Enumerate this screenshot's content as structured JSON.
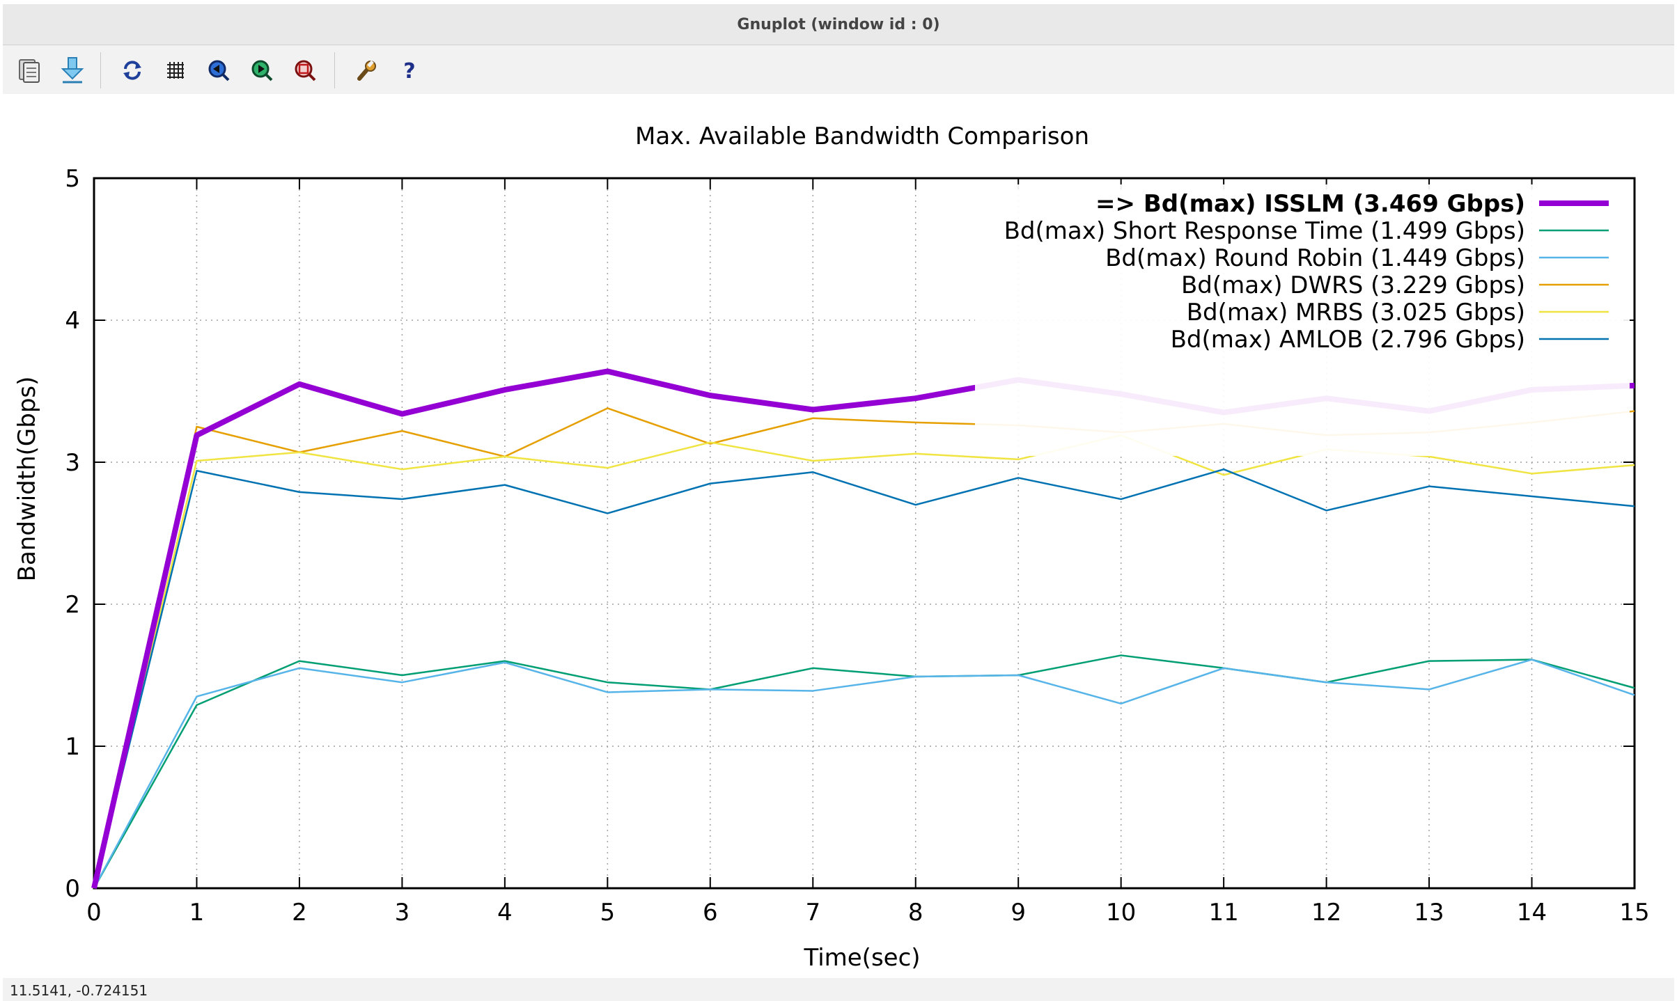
{
  "window": {
    "title": "Gnuplot (window id : 0)"
  },
  "toolbar": {
    "buttons": [
      {
        "name": "copy-to-clipboard",
        "icon": "clipboard-icon"
      },
      {
        "name": "export",
        "icon": "download-arrow-icon"
      },
      {
        "name": "replot",
        "icon": "refresh-icon"
      },
      {
        "name": "toggle-grid",
        "icon": "grid-icon"
      },
      {
        "name": "previous-zoom",
        "icon": "zoom-previous-icon"
      },
      {
        "name": "next-zoom",
        "icon": "zoom-next-icon"
      },
      {
        "name": "autoscale",
        "icon": "zoom-autoscale-icon"
      },
      {
        "name": "settings",
        "icon": "wrench-icon"
      },
      {
        "name": "help",
        "icon": "question-icon"
      }
    ]
  },
  "status": {
    "coords": "11.5141, -0.724151"
  },
  "chart_data": {
    "type": "line",
    "title": "Max. Available Bandwidth Comparison",
    "xlabel": "Time(sec)",
    "ylabel": "Bandwidth(Gbps)",
    "xlim": [
      0,
      15
    ],
    "ylim": [
      0,
      5
    ],
    "xticks": [
      "0",
      "1",
      "2",
      "3",
      "4",
      "5",
      "6",
      "7",
      "8",
      "9",
      "10",
      "11",
      "12",
      "13",
      "14",
      "15"
    ],
    "yticks": [
      "0",
      "1",
      "2",
      "3",
      "4",
      "5"
    ],
    "grid": true,
    "legend_position": "top-right",
    "x": [
      0,
      1,
      2,
      3,
      4,
      5,
      6,
      7,
      8,
      9,
      10,
      11,
      12,
      13,
      14,
      15
    ],
    "series": [
      {
        "name": "=> Bd(max) ISSLM (3.469 Gbps)",
        "color": "#9400d3",
        "bold": true,
        "values": [
          0,
          3.19,
          3.55,
          3.34,
          3.51,
          3.64,
          3.47,
          3.37,
          3.45,
          3.58,
          3.48,
          3.35,
          3.45,
          3.36,
          3.51,
          3.54
        ]
      },
      {
        "name": "Bd(max) Short Response Time (1.499 Gbps)",
        "color": "#009e73",
        "bold": false,
        "values": [
          0,
          1.29,
          1.6,
          1.5,
          1.6,
          1.45,
          1.4,
          1.55,
          1.49,
          1.5,
          1.64,
          1.55,
          1.45,
          1.6,
          1.61,
          1.41
        ]
      },
      {
        "name": "Bd(max) Round Robin (1.449 Gbps)",
        "color": "#56b4e9",
        "bold": false,
        "values": [
          0,
          1.35,
          1.55,
          1.45,
          1.59,
          1.38,
          1.4,
          1.39,
          1.49,
          1.5,
          1.3,
          1.55,
          1.45,
          1.4,
          1.61,
          1.36
        ]
      },
      {
        "name": "Bd(max) DWRS (3.229 Gbps)",
        "color": "#e69f00",
        "bold": false,
        "values": [
          0,
          3.25,
          3.07,
          3.22,
          3.04,
          3.38,
          3.13,
          3.31,
          3.28,
          3.26,
          3.21,
          3.27,
          3.19,
          3.21,
          3.28,
          3.36
        ]
      },
      {
        "name": "Bd(max) MRBS (3.025 Gbps)",
        "color": "#f0e442",
        "bold": false,
        "values": [
          0,
          3.01,
          3.07,
          2.95,
          3.04,
          2.96,
          3.14,
          3.01,
          3.06,
          3.02,
          3.19,
          2.91,
          3.09,
          3.04,
          2.92,
          2.98
        ]
      },
      {
        "name": "Bd(max) AMLOB (2.796 Gbps)",
        "color": "#0072b2",
        "bold": false,
        "values": [
          0,
          2.94,
          2.79,
          2.74,
          2.84,
          2.64,
          2.85,
          2.93,
          2.7,
          2.89,
          2.74,
          2.95,
          2.66,
          2.83,
          2.76,
          2.69
        ]
      }
    ]
  }
}
